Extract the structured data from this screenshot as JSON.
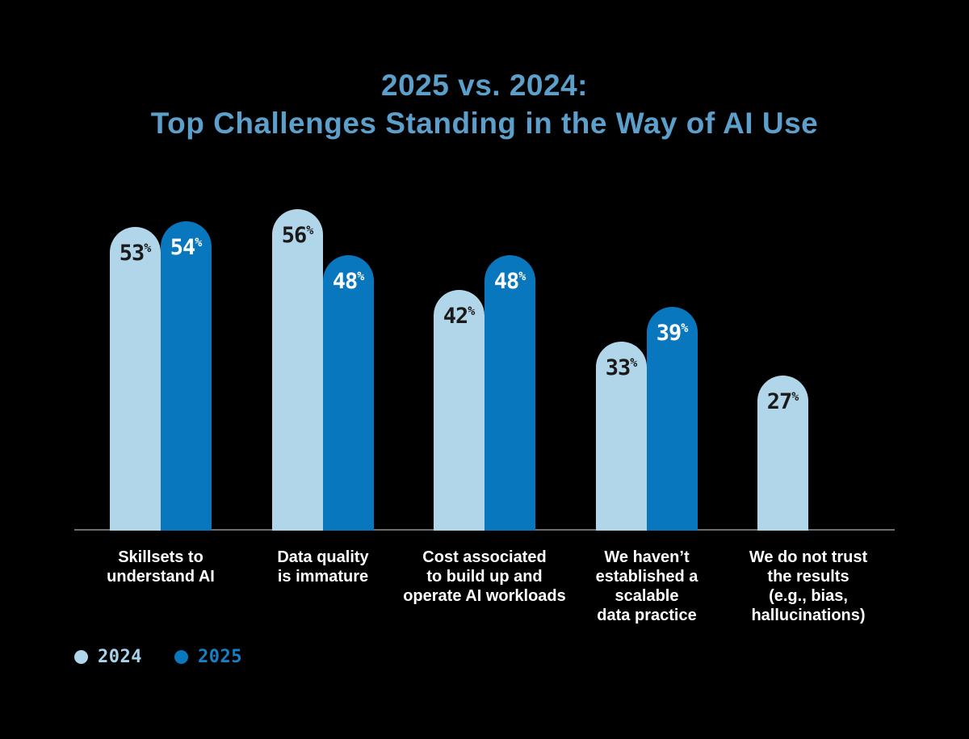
{
  "title": {
    "line1": "2025 vs. 2024:",
    "line2": "Top Challenges Standing in the Way of AI Use",
    "color": "#5C9FCA"
  },
  "chart_data": {
    "type": "bar",
    "title": "2025 vs. 2024: Top Challenges Standing in the Way of AI Use",
    "categories": [
      {
        "label": "Skillsets to understand AI",
        "lines": [
          "Skillsets to",
          "understand AI"
        ]
      },
      {
        "label": "Data quality is immature",
        "lines": [
          "Data quality",
          "is immature"
        ]
      },
      {
        "label": "Cost associated to build up and operate AI workloads",
        "lines": [
          "Cost associated",
          "to build up and",
          "operate AI workloads"
        ]
      },
      {
        "label": "We haven’t established a scalable data practice",
        "lines": [
          "We haven’t",
          "established a",
          "scalable",
          "data practice"
        ]
      },
      {
        "label": "We do not trust the results (e.g., bias, hallucinations)",
        "lines": [
          "We do not trust",
          "the results",
          "(e.g., bias,",
          "hallucinations)"
        ]
      }
    ],
    "series": [
      {
        "name": "2024",
        "color": "#B2D6E9",
        "label_color": "#1A1A1A",
        "values": [
          53,
          56,
          42,
          33,
          27
        ]
      },
      {
        "name": "2025",
        "color": "#0977BD",
        "label_color": "#FFFFFF",
        "values": [
          54,
          48,
          48,
          39,
          null
        ]
      }
    ],
    "value_suffix": "%",
    "ylim": [
      0,
      60
    ],
    "grid": false,
    "legend_position": "bottom-left",
    "axis_line_color": "#6E6E6E",
    "background_color": "#000000"
  },
  "legend": {
    "items": [
      {
        "label": "2024",
        "color": "#B2D6E9",
        "text_color": "#A9D3E9"
      },
      {
        "label": "2025",
        "color": "#0977BD",
        "text_color": "#1580C6"
      }
    ]
  }
}
